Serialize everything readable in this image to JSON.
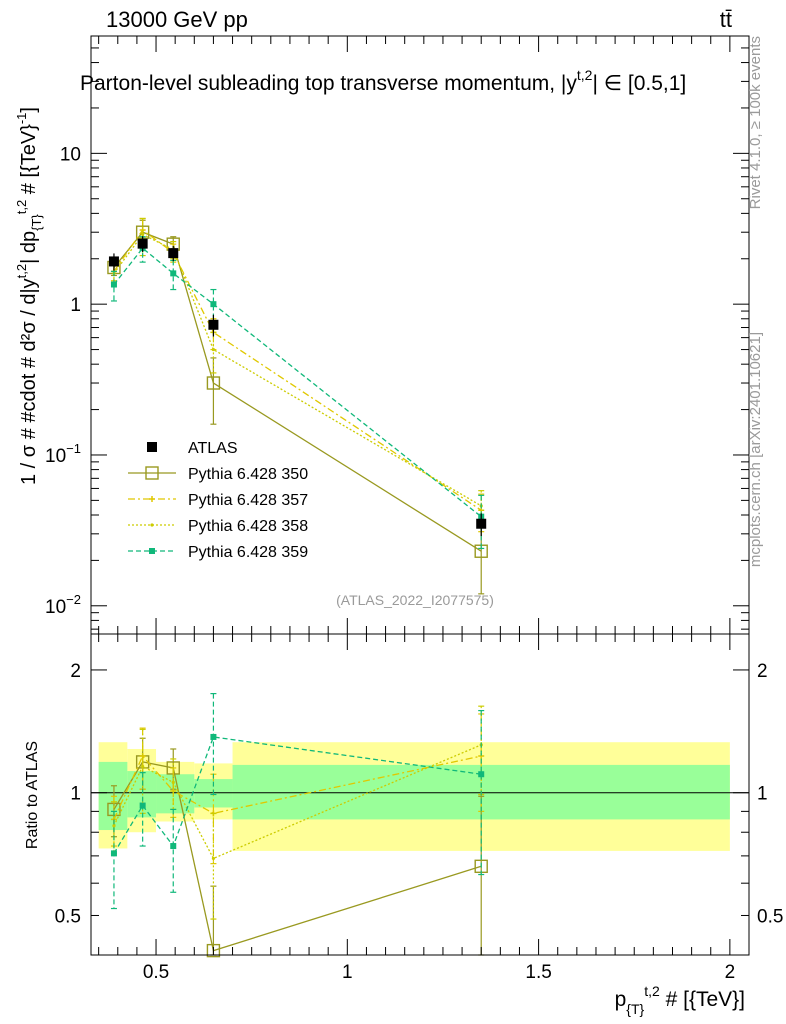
{
  "header": {
    "left": "13000 GeV pp",
    "right": "tt̄"
  },
  "side_labels": {
    "rivet": "Rivet 4.1.0, ≥ 100k events",
    "mcplots": "mcplots.cern.ch [arXiv:2401.10621]"
  },
  "chart_data": {
    "type": "line",
    "title": "Parton-level subleading top transverse momentum, |y",
    "title_sup": "t,2",
    "title_tail": "| ∈ [0.5,1]",
    "watermark": "(ATLAS_2022_I2077575)",
    "xlabel": "p",
    "xlabel_sub": "{T}",
    "xlabel_sup": "t,2",
    "xlabel_tail": " # [{TeV}]",
    "ylabel": "1 / σ # #cdot # d²σ / d|y",
    "ylabel_sup1": "t,2",
    "ylabel_mid": "| dp",
    "ylabel_sub": "{T}",
    "ylabel_sup2": "t,2",
    "ylabel_tail": " # [{TeV}",
    "ylabel_exp": "-1",
    "ylabel_end": "]",
    "ratio_ylabel": "Ratio to ATLAS",
    "xlim": [
      0.33,
      2.05
    ],
    "ylim": [
      0.0065,
      60
    ],
    "ratio_ylim": [
      0.4,
      2.45
    ],
    "x_ticks": [
      {
        "value": 0.5,
        "label": "0.5"
      },
      {
        "value": 1.0,
        "label": "1"
      },
      {
        "value": 1.5,
        "label": "1.5"
      },
      {
        "value": 2.0,
        "label": "2"
      }
    ],
    "y_ticks": [
      {
        "value": 0.01,
        "base": "10",
        "exp": "−2"
      },
      {
        "value": 0.1,
        "base": "10",
        "exp": "−1"
      },
      {
        "value": 1,
        "base": "1",
        "exp": ""
      },
      {
        "value": 10,
        "base": "10",
        "exp": ""
      }
    ],
    "ratio_ticks": [
      {
        "value": 0.5,
        "label": "0.5"
      },
      {
        "value": 1,
        "label": "1"
      },
      {
        "value": 2,
        "label": "2"
      }
    ],
    "bins": [
      {
        "lo": 0.35,
        "hi": 0.425
      },
      {
        "lo": 0.425,
        "hi": 0.5
      },
      {
        "lo": 0.5,
        "hi": 0.6
      },
      {
        "lo": 0.6,
        "hi": 0.7
      },
      {
        "lo": 0.7,
        "hi": 2.0
      }
    ],
    "x": [
      0.39,
      0.465,
      0.545,
      0.65,
      1.35
    ],
    "data": {
      "name": "ATLAS",
      "values": [
        1.92,
        2.52,
        2.18,
        0.73,
        0.035
      ],
      "errors": [
        0.25,
        0.3,
        0.25,
        0.12,
        0.006
      ],
      "band_inner": [
        [
          0.81,
          1.19
        ],
        [
          0.87,
          1.13
        ],
        [
          0.89,
          1.11
        ],
        [
          0.92,
          1.08
        ],
        [
          0.86,
          1.17
        ]
      ],
      "band_outer": [
        [
          0.73,
          1.33
        ],
        [
          0.8,
          1.28
        ],
        [
          0.85,
          1.19
        ],
        [
          0.86,
          1.18
        ],
        [
          0.72,
          1.33
        ]
      ]
    },
    "series": [
      {
        "name": "Pythia 6.428 350",
        "color": "#999920",
        "style": "solid",
        "marker": "open-square",
        "values": [
          1.75,
          3.0,
          2.5,
          0.3,
          0.023
        ],
        "errors": [
          0.2,
          0.6,
          0.3,
          0.14,
          0.011
        ],
        "ratio": [
          0.91,
          1.19,
          1.15,
          0.41,
          0.66
        ],
        "ratio_err": [
          0.13,
          0.17,
          0.13,
          0.18,
          0.32
        ]
      },
      {
        "name": "Pythia 6.428 357",
        "color": "#e0c800",
        "style": "dashdot",
        "marker": "star",
        "values": [
          1.65,
          3.1,
          2.2,
          0.65,
          0.043
        ],
        "errors": [
          0.22,
          0.6,
          0.3,
          0.15,
          0.012
        ],
        "ratio": [
          0.86,
          1.23,
          1.01,
          0.89,
          1.23
        ],
        "ratio_err": [
          0.12,
          0.21,
          0.14,
          0.22,
          0.33
        ]
      },
      {
        "name": "Pythia 6.428 358",
        "color": "#cccc00",
        "style": "dotted",
        "marker": "dot",
        "values": [
          1.6,
          2.9,
          2.3,
          0.5,
          0.046
        ],
        "errors": [
          0.22,
          0.8,
          0.3,
          0.15,
          0.012
        ],
        "ratio": [
          0.83,
          1.16,
          1.06,
          0.69,
          1.31
        ],
        "ratio_err": [
          0.12,
          0.27,
          0.15,
          0.2,
          0.32
        ]
      },
      {
        "name": "Pythia 6.428 359",
        "color": "#10b87a",
        "style": "dashed",
        "marker": "filled-square",
        "values": [
          1.35,
          2.35,
          1.6,
          1.0,
          0.039
        ],
        "errors": [
          0.3,
          0.45,
          0.35,
          0.25,
          0.015
        ],
        "ratio": [
          0.71,
          0.93,
          0.74,
          1.37,
          1.11
        ],
        "ratio_err": [
          0.19,
          0.19,
          0.17,
          0.38,
          0.48
        ]
      }
    ]
  }
}
